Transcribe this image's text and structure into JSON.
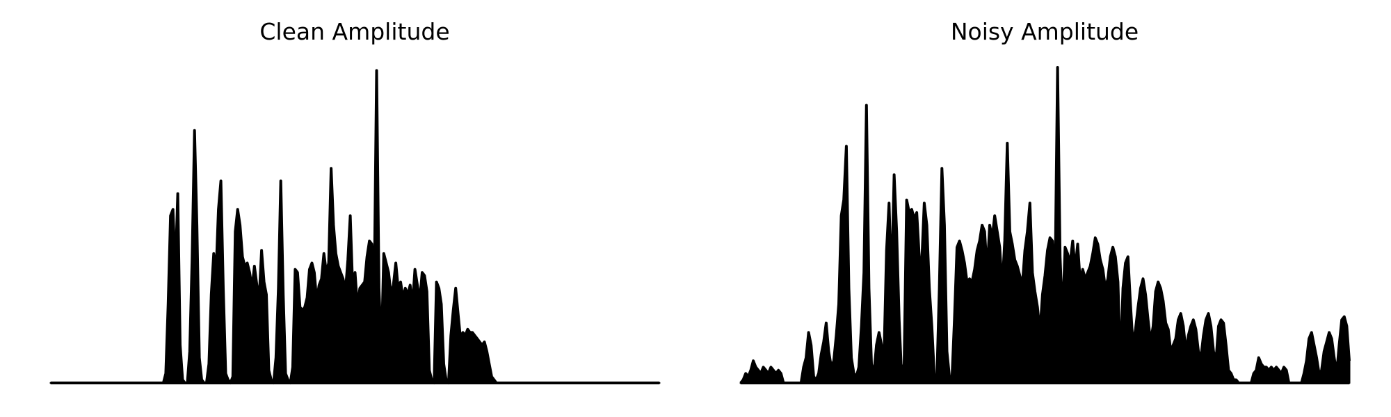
{
  "colors": {
    "background": "#ffffff",
    "trace": "#000000"
  },
  "chart_data": [
    {
      "type": "area",
      "title": "Clean Amplitude",
      "axes_visible": false,
      "grid": false,
      "x_range": [
        0,
        1
      ],
      "ylim": [
        0,
        1.0
      ],
      "series": [
        {
          "values": [
            0,
            0,
            0,
            0,
            0,
            0,
            0,
            0,
            0,
            0,
            0,
            0,
            0,
            0,
            0,
            0,
            0,
            0,
            0,
            0,
            0,
            0,
            0,
            0,
            0,
            0,
            0,
            0,
            0,
            0,
            0,
            0,
            0,
            0,
            0,
            0,
            0,
            0,
            0,
            0,
            0,
            0,
            0,
            0,
            0,
            0,
            0,
            0,
            0.03,
            0.25,
            0.53,
            0.55,
            0.35,
            0.6,
            0.12,
            0.01,
            0,
            0,
            0.1,
            0.39,
            0.8,
            0.5,
            0.08,
            0.01,
            0,
            0,
            0.06,
            0.28,
            0.41,
            0.35,
            0.55,
            0.64,
            0.3,
            0.03,
            0.01,
            0,
            0.02,
            0.48,
            0.55,
            0.5,
            0.4,
            0.37,
            0.38,
            0.35,
            0.3,
            0.37,
            0.31,
            0.27,
            0.42,
            0.32,
            0.28,
            0.04,
            0.01,
            0,
            0.08,
            0.3,
            0.64,
            0.28,
            0.03,
            0.01,
            0,
            0.05,
            0.36,
            0.35,
            0.24,
            0.23,
            0.24,
            0.27,
            0.36,
            0.38,
            0.35,
            0.26,
            0.31,
            0.33,
            0.41,
            0.35,
            0.38,
            0.68,
            0.5,
            0.41,
            0.37,
            0.35,
            0.33,
            0.29,
            0.39,
            0.53,
            0.3,
            0.35,
            0.24,
            0.3,
            0.31,
            0.32,
            0.4,
            0.45,
            0.44,
            0.3,
            0.99,
            0.3,
            0.1,
            0.41,
            0.38,
            0.35,
            0.28,
            0.31,
            0.38,
            0.3,
            0.32,
            0.27,
            0.3,
            0.28,
            0.31,
            0.25,
            0.36,
            0.31,
            0.26,
            0.35,
            0.34,
            0.29,
            0.04,
            0.01,
            0,
            0.32,
            0.3,
            0.25,
            0.06,
            0.01,
            0,
            0.15,
            0.23,
            0.3,
            0.22,
            0.14,
            0.16,
            0.15,
            0.17,
            0.16,
            0.16,
            0.15,
            0.14,
            0.13,
            0.12,
            0.13,
            0.1,
            0.06,
            0.02,
            0.01,
            0,
            0,
            0,
            0,
            0,
            0,
            0,
            0,
            0,
            0,
            0,
            0,
            0,
            0,
            0,
            0,
            0,
            0,
            0,
            0,
            0,
            0,
            0,
            0,
            0,
            0,
            0,
            0,
            0,
            0,
            0,
            0,
            0,
            0,
            0,
            0,
            0,
            0,
            0,
            0,
            0,
            0,
            0,
            0,
            0,
            0,
            0,
            0,
            0,
            0,
            0,
            0,
            0,
            0,
            0,
            0,
            0,
            0,
            0,
            0,
            0,
            0,
            0,
            0,
            0,
            0,
            0,
            0,
            0
          ]
        }
      ]
    },
    {
      "type": "area",
      "title": "Noisy Amplitude",
      "axes_visible": false,
      "grid": false,
      "x_range": [
        0,
        1
      ],
      "ylim": [
        0,
        1.0
      ],
      "series": [
        {
          "values": [
            0,
            0.01,
            0.03,
            0.02,
            0.04,
            0.07,
            0.05,
            0.04,
            0.03,
            0.05,
            0.04,
            0.03,
            0.05,
            0.04,
            0.03,
            0.04,
            0.03,
            0,
            0,
            0,
            0,
            0,
            0,
            0,
            0,
            0.05,
            0.08,
            0.16,
            0.12,
            0.02,
            0.01,
            0.03,
            0.09,
            0.13,
            0.19,
            0.1,
            0.05,
            0.07,
            0.15,
            0.25,
            0.53,
            0.58,
            0.75,
            0.3,
            0.08,
            0.03,
            0.02,
            0.05,
            0.18,
            0.35,
            0.88,
            0.3,
            0.06,
            0.03,
            0.12,
            0.16,
            0.12,
            0.09,
            0.42,
            0.57,
            0.3,
            0.66,
            0.48,
            0.2,
            0.02,
            0.06,
            0.58,
            0.54,
            0.55,
            0.52,
            0.54,
            0.4,
            0.38,
            0.57,
            0.5,
            0.3,
            0.18,
            0.02,
            0.01,
            0.3,
            0.68,
            0.5,
            0.1,
            0.02,
            0.01,
            0.2,
            0.43,
            0.45,
            0.42,
            0.38,
            0.32,
            0.33,
            0.32,
            0.36,
            0.42,
            0.45,
            0.5,
            0.48,
            0.35,
            0.5,
            0.46,
            0.53,
            0.48,
            0.43,
            0.3,
            0.45,
            0.76,
            0.48,
            0.44,
            0.39,
            0.37,
            0.34,
            0.31,
            0.42,
            0.48,
            0.57,
            0.35,
            0.29,
            0.24,
            0.16,
            0.28,
            0.34,
            0.42,
            0.46,
            0.45,
            0.32,
            1.0,
            0.4,
            0.2,
            0.43,
            0.41,
            0.38,
            0.45,
            0.36,
            0.44,
            0.32,
            0.36,
            0.33,
            0.35,
            0.37,
            0.41,
            0.46,
            0.44,
            0.39,
            0.36,
            0.3,
            0.33,
            0.4,
            0.43,
            0.4,
            0.32,
            0.05,
            0.3,
            0.38,
            0.4,
            0.25,
            0.12,
            0.17,
            0.24,
            0.3,
            0.33,
            0.28,
            0.2,
            0.13,
            0.18,
            0.29,
            0.32,
            0.3,
            0.26,
            0.19,
            0.17,
            0.1,
            0.12,
            0.14,
            0.2,
            0.22,
            0.18,
            0.1,
            0.15,
            0.18,
            0.2,
            0.17,
            0.1,
            0.08,
            0.15,
            0.2,
            0.22,
            0.18,
            0.1,
            0.07,
            0.18,
            0.2,
            0.19,
            0.12,
            0.04,
            0.03,
            0.01,
            0.01,
            0,
            0,
            0,
            0,
            0,
            0,
            0.03,
            0.04,
            0.08,
            0.06,
            0.05,
            0.05,
            0.04,
            0.05,
            0.04,
            0.05,
            0.04,
            0.03,
            0.05,
            0.04,
            0,
            0,
            0,
            0,
            0,
            0,
            0.03,
            0.07,
            0.14,
            0.16,
            0.12,
            0.08,
            0.03,
            0.04,
            0.1,
            0.13,
            0.16,
            0.14,
            0.08,
            0.03,
            0.12,
            0.2,
            0.21,
            0.18,
            0.07
          ]
        }
      ]
    }
  ]
}
